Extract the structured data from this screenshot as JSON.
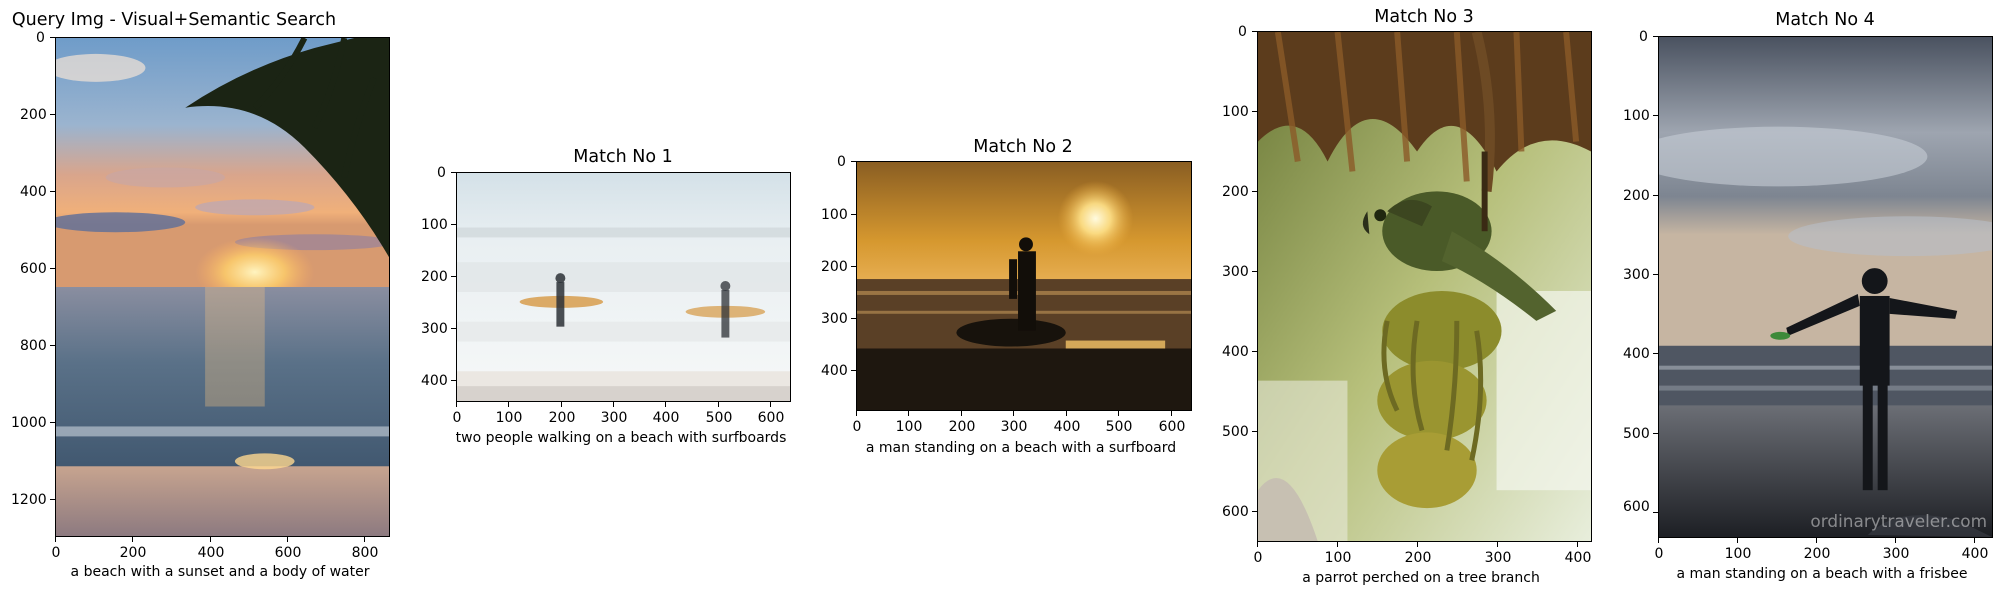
{
  "panels": [
    {
      "title": "Query Img - Visual+Semantic Search",
      "caption": "a beach with a sunset and a body of water",
      "x_ticks": [
        "0",
        "200",
        "400",
        "600",
        "800"
      ],
      "y_ticks": [
        "0",
        "200",
        "400",
        "600",
        "800",
        "1000",
        "1200"
      ]
    },
    {
      "title": "Match No 1",
      "caption": "two people walking on a beach with surfboards",
      "x_ticks": [
        "0",
        "100",
        "200",
        "300",
        "400",
        "500",
        "600"
      ],
      "y_ticks": [
        "0",
        "100",
        "200",
        "300",
        "400"
      ]
    },
    {
      "title": "Match No 2",
      "caption": "a man standing on a beach with a surfboard",
      "x_ticks": [
        "0",
        "100",
        "200",
        "300",
        "400",
        "500",
        "600"
      ],
      "y_ticks": [
        "0",
        "100",
        "200",
        "300",
        "400"
      ]
    },
    {
      "title": "Match No 3",
      "caption": "a parrot perched on a tree branch",
      "x_ticks": [
        "0",
        "100",
        "200",
        "300",
        "400"
      ],
      "y_ticks": [
        "0",
        "100",
        "200",
        "300",
        "400",
        "500",
        "600"
      ]
    },
    {
      "title": "Match No 4",
      "caption": "a man standing on a beach with a frisbee",
      "x_ticks": [
        "0",
        "100",
        "200",
        "300",
        "400"
      ],
      "y_ticks": [
        "0",
        "100",
        "200",
        "300",
        "400",
        "500",
        "600"
      ]
    }
  ],
  "watermark": "ordinarytraveler.com",
  "colors": {
    "sunset_sky_top": "#7fa6cf",
    "sunset_sky_mid": "#e9a07a",
    "sunset_sun": "#ffd36a",
    "sea": "#4d6a86",
    "sand": "#a58d84",
    "surf_sky": "#dfe9ee",
    "golden_sky": "#e7a73a",
    "jungle_green": "#5c6b2a",
    "banana": "#a5a23a",
    "overcast": "#8d95a3"
  }
}
